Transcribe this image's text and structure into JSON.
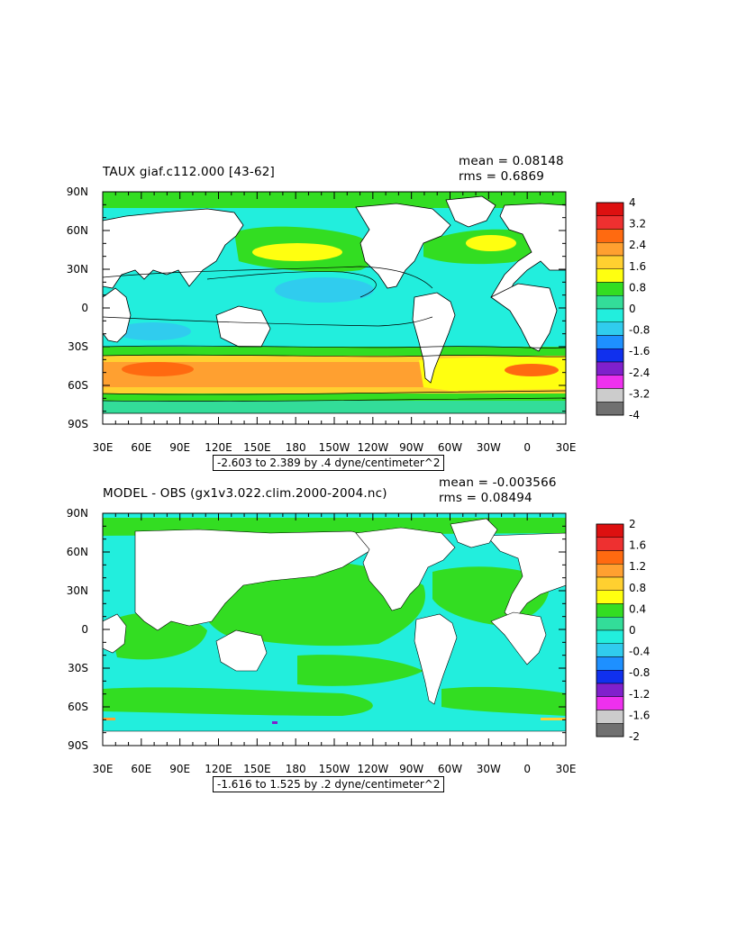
{
  "lon_ticks": [
    "30E",
    "60E",
    "90E",
    "120E",
    "150E",
    "180",
    "150W",
    "120W",
    "90W",
    "60W",
    "30W",
    "0",
    "30E"
  ],
  "lat_ticks": [
    "90N",
    "60N",
    "30N",
    "0",
    "30S",
    "60S",
    "90S"
  ],
  "panels": [
    {
      "title": "TAUX giaf.c112.000 [43-62]",
      "mean_text": "mean = 0.08148",
      "rms_text": "rms = 0.6869",
      "range_text": "-2.603 to 2.389 by .4 dyne/centimeter^2",
      "legend_labels": [
        "4",
        "3.2",
        "2.4",
        "1.6",
        "0.8",
        "0",
        "-0.8",
        "-1.6",
        "-2.4",
        "-3.2",
        "-4"
      ],
      "legend_colors": [
        "#dd1010",
        "#ee3030",
        "#ff6a10",
        "#ffa030",
        "#ffd030",
        "#ffff10",
        "#33dd22",
        "#33dd99",
        "#22eedd",
        "#30ccee",
        "#1e90ff",
        "#1030ee",
        "#8020cc",
        "#ee30ee",
        "#cccccc",
        "#707070"
      ]
    },
    {
      "title": "MODEL - OBS (gx1v3.022.clim.2000-2004.nc)",
      "mean_text": "mean = -0.003566",
      "rms_text": "rms = 0.08494",
      "range_text": "-1.616 to 1.525 by .2 dyne/centimeter^2",
      "legend_labels": [
        "2",
        "1.6",
        "1.2",
        "0.8",
        "0.4",
        "0",
        "-0.4",
        "-0.8",
        "-1.2",
        "-1.6",
        "-2"
      ],
      "legend_colors": [
        "#dd1010",
        "#ee3030",
        "#ff6a10",
        "#ffa030",
        "#ffd030",
        "#ffff10",
        "#33dd22",
        "#33dd99",
        "#22eedd",
        "#30ccee",
        "#1e90ff",
        "#1030ee",
        "#8020cc",
        "#ee30ee",
        "#cccccc",
        "#707070"
      ]
    }
  ]
}
